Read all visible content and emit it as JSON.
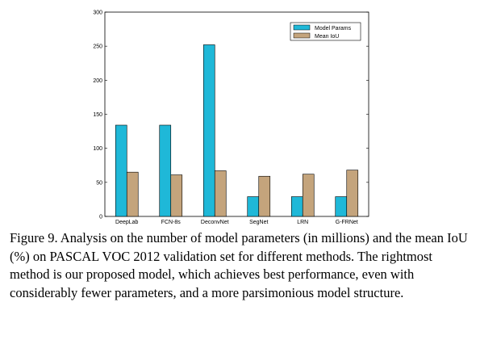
{
  "chart_data": {
    "type": "bar",
    "categories": [
      "DeepLab",
      "FCN-8s",
      "DeconvNet",
      "SegNet",
      "LRN",
      "G-FRNet"
    ],
    "series": [
      {
        "name": "Model Params",
        "values": [
          134,
          134,
          252,
          29,
          29,
          29
        ],
        "color": "#1fb8d8"
      },
      {
        "name": "Mean IoU",
        "values": [
          65,
          61,
          67,
          59,
          62,
          68
        ],
        "color": "#c4a47c"
      }
    ],
    "yticks": [
      0,
      50,
      100,
      150,
      200,
      250,
      300
    ],
    "ylim": [
      0,
      300
    ],
    "title": "",
    "xlabel": "",
    "ylabel": "",
    "legend_position": "top-right",
    "grid": false
  },
  "caption": "Figure 9. Analysis on the number of model parameters (in millions) and the mean IoU (%) on PASCAL VOC 2012 validation set for different methods. The rightmost method is our proposed model, which achieves best performance, even with considerably fewer parameters, and a more parsimonious model structure."
}
